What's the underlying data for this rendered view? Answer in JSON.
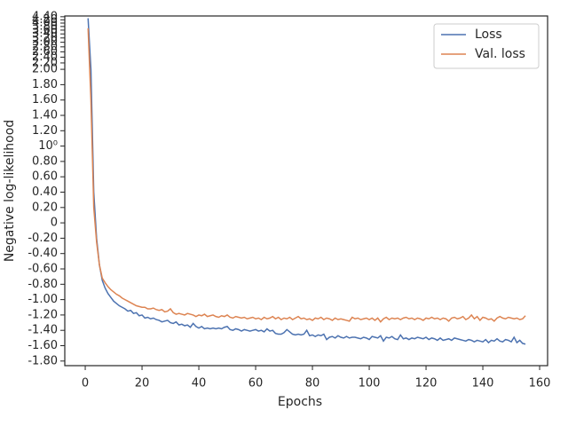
{
  "chart_data": {
    "type": "line",
    "xlabel": "Epochs",
    "ylabel": "Negative log-likelihood",
    "yscale": "symlog",
    "linthresh": 2,
    "legend": "upper right",
    "xlim": [
      -7.2,
      162.8
    ],
    "ylim": [
      -1.86,
      4.45
    ],
    "xticks": [
      0,
      20,
      40,
      60,
      80,
      100,
      120,
      140,
      160
    ],
    "yticks": [
      {
        "value": -1.8,
        "label": "-1.80"
      },
      {
        "value": -1.6,
        "label": "-1.60"
      },
      {
        "value": -1.4,
        "label": "-1.40"
      },
      {
        "value": -1.2,
        "label": "-1.20"
      },
      {
        "value": -1.0,
        "label": "-1.00"
      },
      {
        "value": -0.8,
        "label": "-0.80"
      },
      {
        "value": -0.6,
        "label": "-0.60"
      },
      {
        "value": -0.4,
        "label": "-0.40"
      },
      {
        "value": -0.2,
        "label": "-0.20"
      },
      0,
      {
        "value": 0.2,
        "label": "0.20"
      },
      {
        "value": 0.4,
        "label": "0.40"
      },
      {
        "value": 0.6,
        "label": "0.60"
      },
      {
        "value": 0.8,
        "label": "0.80"
      },
      {
        "value": 1,
        "label": "10⁰"
      },
      {
        "value": 1.2,
        "label": "1.20"
      },
      {
        "value": 1.4,
        "label": "1.40"
      },
      {
        "value": 1.6,
        "label": "1.60"
      },
      {
        "value": 1.8,
        "label": "1.80"
      },
      {
        "value": 2.0,
        "label": "2.00"
      },
      {
        "value": 2.2,
        "label": "2.20"
      },
      {
        "value": 2.4,
        "label": "2.40"
      },
      {
        "value": 2.6,
        "label": "2.60"
      },
      {
        "value": 2.8,
        "label": "2.80"
      },
      {
        "value": 3.0,
        "label": "3.00"
      },
      {
        "value": 3.2,
        "label": "3.20"
      },
      {
        "value": 3.4,
        "label": "3.40"
      },
      {
        "value": 3.6,
        "label": "3.60"
      },
      {
        "value": 3.8,
        "label": "3.80"
      },
      {
        "value": 4.0,
        "label": "4.00"
      },
      {
        "value": 4.2,
        "label": "4.20"
      },
      {
        "value": 4.4,
        "label": "4.40"
      }
    ],
    "x": [
      1,
      2,
      3,
      4,
      5,
      6,
      7,
      8,
      9,
      10,
      11,
      12,
      13,
      14,
      15,
      16,
      17,
      18,
      19,
      20,
      21,
      22,
      23,
      24,
      25,
      26,
      27,
      28,
      29,
      30,
      31,
      32,
      33,
      34,
      35,
      36,
      37,
      38,
      39,
      40,
      41,
      42,
      43,
      44,
      45,
      46,
      47,
      48,
      49,
      50,
      51,
      52,
      53,
      54,
      55,
      56,
      57,
      58,
      59,
      60,
      61,
      62,
      63,
      64,
      65,
      66,
      67,
      68,
      69,
      70,
      71,
      72,
      73,
      74,
      75,
      76,
      77,
      78,
      79,
      80,
      81,
      82,
      83,
      84,
      85,
      86,
      87,
      88,
      89,
      90,
      91,
      92,
      93,
      94,
      95,
      96,
      97,
      98,
      99,
      100,
      101,
      102,
      103,
      104,
      105,
      106,
      107,
      108,
      109,
      110,
      111,
      112,
      113,
      114,
      115,
      116,
      117,
      118,
      119,
      120,
      121,
      122,
      123,
      124,
      125,
      126,
      127,
      128,
      129,
      130,
      131,
      132,
      133,
      134,
      135,
      136,
      137,
      138,
      139,
      140,
      141,
      142,
      143,
      144,
      145,
      146,
      147,
      148,
      149,
      150,
      151,
      152,
      153,
      154,
      155
    ],
    "series": [
      {
        "name": "Loss",
        "color": "#4c72b0",
        "values": [
          4.3,
          2.0,
          0.4,
          -0.2,
          -0.55,
          -0.75,
          -0.85,
          -0.92,
          -0.97,
          -1.02,
          -1.05,
          -1.08,
          -1.1,
          -1.12,
          -1.15,
          -1.14,
          -1.18,
          -1.17,
          -1.21,
          -1.2,
          -1.24,
          -1.23,
          -1.25,
          -1.24,
          -1.26,
          -1.27,
          -1.29,
          -1.28,
          -1.27,
          -1.3,
          -1.31,
          -1.29,
          -1.33,
          -1.32,
          -1.34,
          -1.33,
          -1.36,
          -1.31,
          -1.35,
          -1.37,
          -1.35,
          -1.38,
          -1.37,
          -1.38,
          -1.37,
          -1.38,
          -1.37,
          -1.38,
          -1.36,
          -1.35,
          -1.39,
          -1.4,
          -1.38,
          -1.39,
          -1.41,
          -1.39,
          -1.4,
          -1.41,
          -1.4,
          -1.39,
          -1.41,
          -1.4,
          -1.42,
          -1.38,
          -1.41,
          -1.4,
          -1.44,
          -1.45,
          -1.45,
          -1.43,
          -1.39,
          -1.42,
          -1.45,
          -1.46,
          -1.45,
          -1.46,
          -1.45,
          -1.4,
          -1.47,
          -1.46,
          -1.48,
          -1.46,
          -1.47,
          -1.45,
          -1.52,
          -1.49,
          -1.48,
          -1.5,
          -1.47,
          -1.49,
          -1.5,
          -1.48,
          -1.5,
          -1.49,
          -1.49,
          -1.5,
          -1.51,
          -1.49,
          -1.5,
          -1.52,
          -1.48,
          -1.49,
          -1.5,
          -1.47,
          -1.54,
          -1.49,
          -1.5,
          -1.48,
          -1.51,
          -1.52,
          -1.46,
          -1.51,
          -1.5,
          -1.52,
          -1.5,
          -1.51,
          -1.49,
          -1.5,
          -1.51,
          -1.49,
          -1.52,
          -1.5,
          -1.51,
          -1.53,
          -1.5,
          -1.53,
          -1.52,
          -1.51,
          -1.53,
          -1.5,
          -1.51,
          -1.52,
          -1.53,
          -1.54,
          -1.52,
          -1.53,
          -1.55,
          -1.53,
          -1.54,
          -1.55,
          -1.52,
          -1.56,
          -1.53,
          -1.54,
          -1.51,
          -1.54,
          -1.55,
          -1.52,
          -1.53,
          -1.55,
          -1.49,
          -1.56,
          -1.53,
          -1.57,
          -1.58
        ]
      },
      {
        "name": "Val. loss",
        "color": "#dd8452",
        "values": [
          3.7,
          1.6,
          0.2,
          -0.25,
          -0.55,
          -0.72,
          -0.78,
          -0.83,
          -0.87,
          -0.9,
          -0.93,
          -0.95,
          -0.98,
          -1.0,
          -1.02,
          -1.04,
          -1.06,
          -1.08,
          -1.09,
          -1.1,
          -1.1,
          -1.12,
          -1.12,
          -1.11,
          -1.13,
          -1.14,
          -1.13,
          -1.16,
          -1.15,
          -1.12,
          -1.17,
          -1.19,
          -1.18,
          -1.19,
          -1.2,
          -1.18,
          -1.19,
          -1.2,
          -1.22,
          -1.2,
          -1.21,
          -1.19,
          -1.22,
          -1.21,
          -1.2,
          -1.22,
          -1.23,
          -1.21,
          -1.22,
          -1.2,
          -1.23,
          -1.24,
          -1.22,
          -1.23,
          -1.24,
          -1.23,
          -1.25,
          -1.24,
          -1.23,
          -1.25,
          -1.24,
          -1.26,
          -1.23,
          -1.25,
          -1.24,
          -1.22,
          -1.25,
          -1.23,
          -1.26,
          -1.24,
          -1.25,
          -1.23,
          -1.26,
          -1.24,
          -1.22,
          -1.25,
          -1.24,
          -1.26,
          -1.25,
          -1.27,
          -1.24,
          -1.25,
          -1.23,
          -1.26,
          -1.24,
          -1.25,
          -1.27,
          -1.24,
          -1.26,
          -1.25,
          -1.26,
          -1.27,
          -1.28,
          -1.23,
          -1.25,
          -1.24,
          -1.26,
          -1.25,
          -1.24,
          -1.26,
          -1.24,
          -1.27,
          -1.24,
          -1.29,
          -1.25,
          -1.23,
          -1.26,
          -1.24,
          -1.25,
          -1.24,
          -1.26,
          -1.24,
          -1.23,
          -1.25,
          -1.24,
          -1.26,
          -1.24,
          -1.25,
          -1.27,
          -1.24,
          -1.25,
          -1.23,
          -1.25,
          -1.24,
          -1.26,
          -1.24,
          -1.25,
          -1.28,
          -1.24,
          -1.23,
          -1.25,
          -1.24,
          -1.22,
          -1.26,
          -1.24,
          -1.2,
          -1.25,
          -1.22,
          -1.27,
          -1.23,
          -1.24,
          -1.26,
          -1.25,
          -1.28,
          -1.24,
          -1.22,
          -1.24,
          -1.25,
          -1.23,
          -1.24,
          -1.25,
          -1.24,
          -1.26,
          -1.25,
          -1.21
        ]
      }
    ]
  }
}
